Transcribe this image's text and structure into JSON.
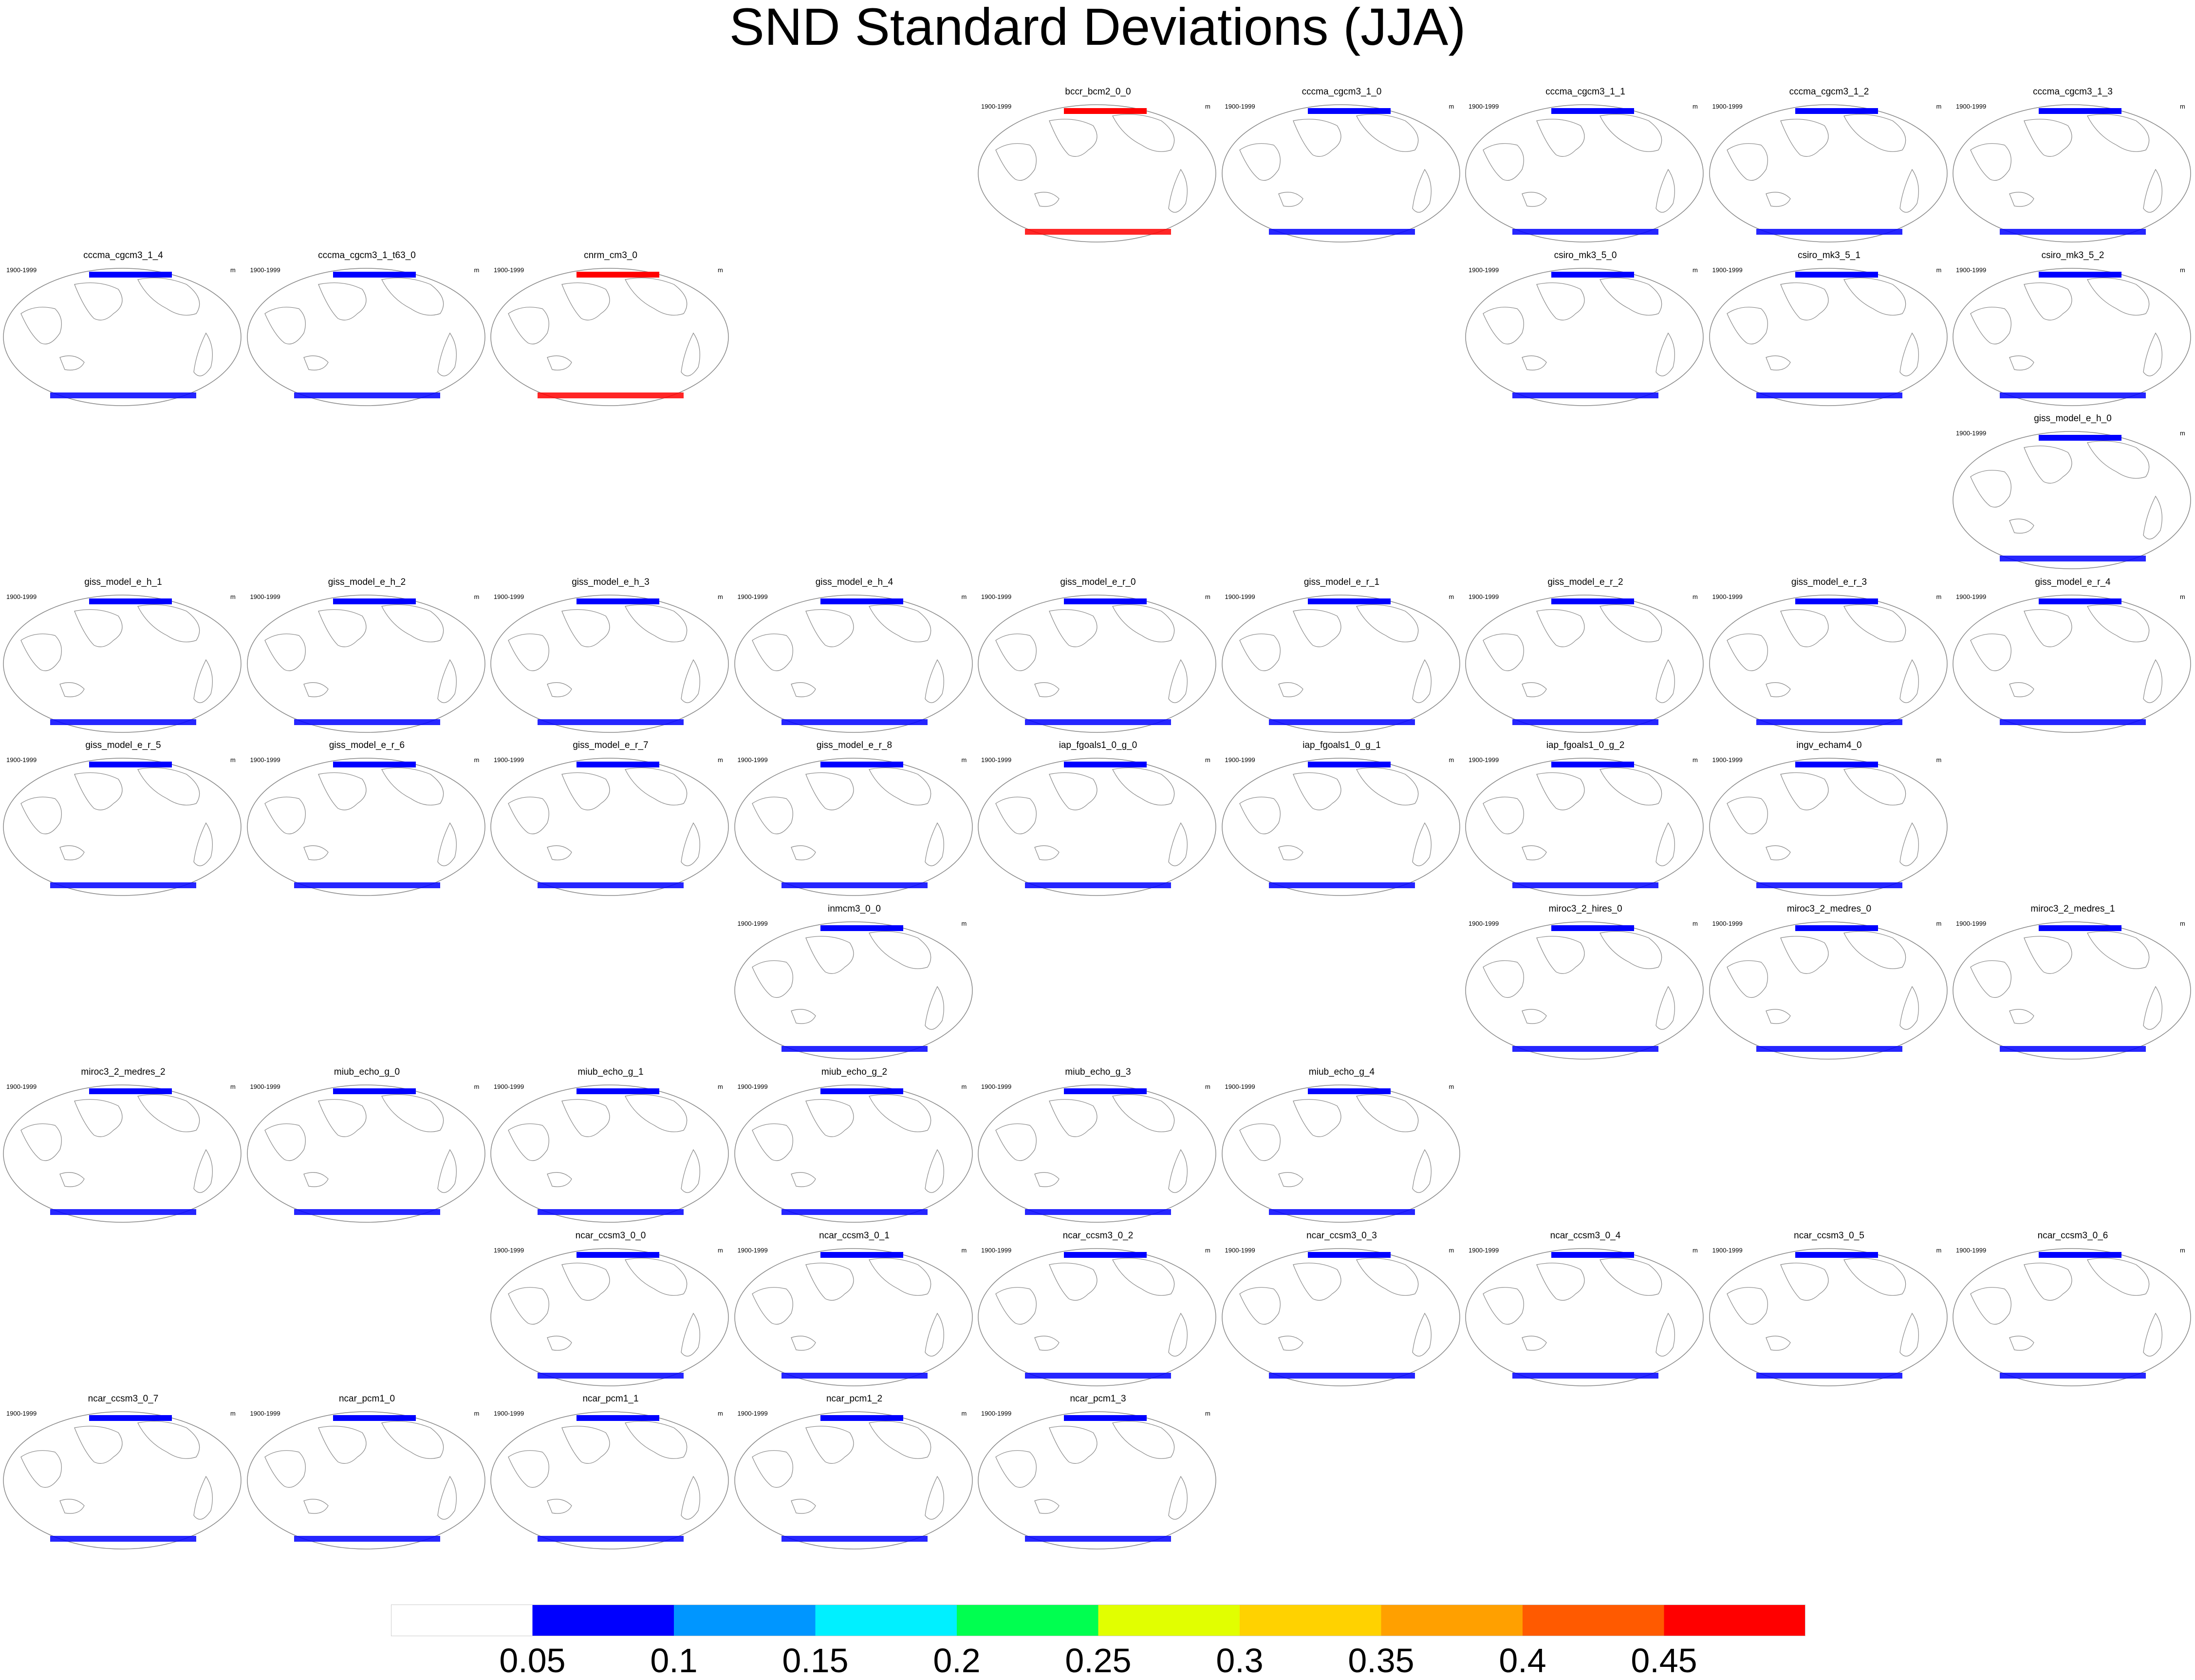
{
  "title": "SND Standard Deviations (JJA)",
  "years": "1900-1999",
  "units": "m",
  "panels": [
    {
      "name": "bccr_bcm2_0_0",
      "row": 0,
      "col": 4,
      "fill": "#ff0000"
    },
    {
      "name": "cccma_cgcm3_1_0",
      "row": 0,
      "col": 5,
      "fill": "#0000ff"
    },
    {
      "name": "cccma_cgcm3_1_1",
      "row": 0,
      "col": 6,
      "fill": "#0000ff"
    },
    {
      "name": "cccma_cgcm3_1_2",
      "row": 0,
      "col": 7,
      "fill": "#0000ff"
    },
    {
      "name": "cccma_cgcm3_1_3",
      "row": 0,
      "col": 8,
      "fill": "#0000ff"
    },
    {
      "name": "cccma_cgcm3_1_4",
      "row": 1,
      "col": 0,
      "fill": "#0000ff"
    },
    {
      "name": "cccma_cgcm3_1_t63_0",
      "row": 1,
      "col": 1,
      "fill": "#0000ff"
    },
    {
      "name": "cnrm_cm3_0",
      "row": 1,
      "col": 2,
      "fill": "#ff0000"
    },
    {
      "name": "csiro_mk3_5_0",
      "row": 1,
      "col": 6,
      "fill": "#0000ff"
    },
    {
      "name": "csiro_mk3_5_1",
      "row": 1,
      "col": 7,
      "fill": "#0000ff"
    },
    {
      "name": "csiro_mk3_5_2",
      "row": 1,
      "col": 8,
      "fill": "#0000ff"
    },
    {
      "name": "giss_model_e_h_0",
      "row": 2,
      "col": 8,
      "fill": "#0000ff"
    },
    {
      "name": "giss_model_e_h_1",
      "row": 3,
      "col": 0,
      "fill": "#0000ff"
    },
    {
      "name": "giss_model_e_h_2",
      "row": 3,
      "col": 1,
      "fill": "#0000ff"
    },
    {
      "name": "giss_model_e_h_3",
      "row": 3,
      "col": 2,
      "fill": "#0000ff"
    },
    {
      "name": "giss_model_e_h_4",
      "row": 3,
      "col": 3,
      "fill": "#0000ff"
    },
    {
      "name": "giss_model_e_r_0",
      "row": 3,
      "col": 4,
      "fill": "#0000ff"
    },
    {
      "name": "giss_model_e_r_1",
      "row": 3,
      "col": 5,
      "fill": "#0000ff"
    },
    {
      "name": "giss_model_e_r_2",
      "row": 3,
      "col": 6,
      "fill": "#0000ff"
    },
    {
      "name": "giss_model_e_r_3",
      "row": 3,
      "col": 7,
      "fill": "#0000ff"
    },
    {
      "name": "giss_model_e_r_4",
      "row": 3,
      "col": 8,
      "fill": "#0000ff"
    },
    {
      "name": "giss_model_e_r_5",
      "row": 4,
      "col": 0,
      "fill": "#0000ff"
    },
    {
      "name": "giss_model_e_r_6",
      "row": 4,
      "col": 1,
      "fill": "#0000ff"
    },
    {
      "name": "giss_model_e_r_7",
      "row": 4,
      "col": 2,
      "fill": "#0000ff"
    },
    {
      "name": "giss_model_e_r_8",
      "row": 4,
      "col": 3,
      "fill": "#0000ff"
    },
    {
      "name": "iap_fgoals1_0_g_0",
      "row": 4,
      "col": 4,
      "fill": "#0000ff"
    },
    {
      "name": "iap_fgoals1_0_g_1",
      "row": 4,
      "col": 5,
      "fill": "#0000ff"
    },
    {
      "name": "iap_fgoals1_0_g_2",
      "row": 4,
      "col": 6,
      "fill": "#0000ff"
    },
    {
      "name": "ingv_echam4_0",
      "row": 4,
      "col": 7,
      "fill": "#0000ff"
    },
    {
      "name": "inmcm3_0_0",
      "row": 5,
      "col": 3,
      "fill": "#0000ff"
    },
    {
      "name": "miroc3_2_hires_0",
      "row": 5,
      "col": 6,
      "fill": "#0000ff"
    },
    {
      "name": "miroc3_2_medres_0",
      "row": 5,
      "col": 7,
      "fill": "#0000ff"
    },
    {
      "name": "miroc3_2_medres_1",
      "row": 5,
      "col": 8,
      "fill": "#0000ff"
    },
    {
      "name": "miroc3_2_medres_2",
      "row": 6,
      "col": 0,
      "fill": "#0000ff"
    },
    {
      "name": "miub_echo_g_0",
      "row": 6,
      "col": 1,
      "fill": "#0000ff"
    },
    {
      "name": "miub_echo_g_1",
      "row": 6,
      "col": 2,
      "fill": "#0000ff"
    },
    {
      "name": "miub_echo_g_2",
      "row": 6,
      "col": 3,
      "fill": "#0000ff"
    },
    {
      "name": "miub_echo_g_3",
      "row": 6,
      "col": 4,
      "fill": "#0000ff"
    },
    {
      "name": "miub_echo_g_4",
      "row": 6,
      "col": 5,
      "fill": "#0000ff"
    },
    {
      "name": "ncar_ccsm3_0_0",
      "row": 7,
      "col": 2,
      "fill": "#0000ff"
    },
    {
      "name": "ncar_ccsm3_0_1",
      "row": 7,
      "col": 3,
      "fill": "#0000ff"
    },
    {
      "name": "ncar_ccsm3_0_2",
      "row": 7,
      "col": 4,
      "fill": "#0000ff"
    },
    {
      "name": "ncar_ccsm3_0_3",
      "row": 7,
      "col": 5,
      "fill": "#0000ff"
    },
    {
      "name": "ncar_ccsm3_0_4",
      "row": 7,
      "col": 6,
      "fill": "#0000ff"
    },
    {
      "name": "ncar_ccsm3_0_5",
      "row": 7,
      "col": 7,
      "fill": "#0000ff"
    },
    {
      "name": "ncar_ccsm3_0_6",
      "row": 7,
      "col": 8,
      "fill": "#0000ff"
    },
    {
      "name": "ncar_ccsm3_0_7",
      "row": 8,
      "col": 0,
      "fill": "#0000ff"
    },
    {
      "name": "ncar_pcm1_0",
      "row": 8,
      "col": 1,
      "fill": "#0000ff"
    },
    {
      "name": "ncar_pcm1_1",
      "row": 8,
      "col": 2,
      "fill": "#0000ff"
    },
    {
      "name": "ncar_pcm1_2",
      "row": 8,
      "col": 3,
      "fill": "#0000ff"
    },
    {
      "name": "ncar_pcm1_3",
      "row": 8,
      "col": 4,
      "fill": "#0000ff"
    }
  ],
  "colorbar": {
    "colors": [
      "#ffffff",
      "#0000ff",
      "#0096ff",
      "#00f0ff",
      "#00ff50",
      "#e1ff00",
      "#ffd200",
      "#ffa000",
      "#ff5a00",
      "#ff0000"
    ],
    "labels": [
      "0.05",
      "0.1",
      "0.15",
      "0.2",
      "0.25",
      "0.3",
      "0.35",
      "0.4",
      "0.45"
    ]
  }
}
